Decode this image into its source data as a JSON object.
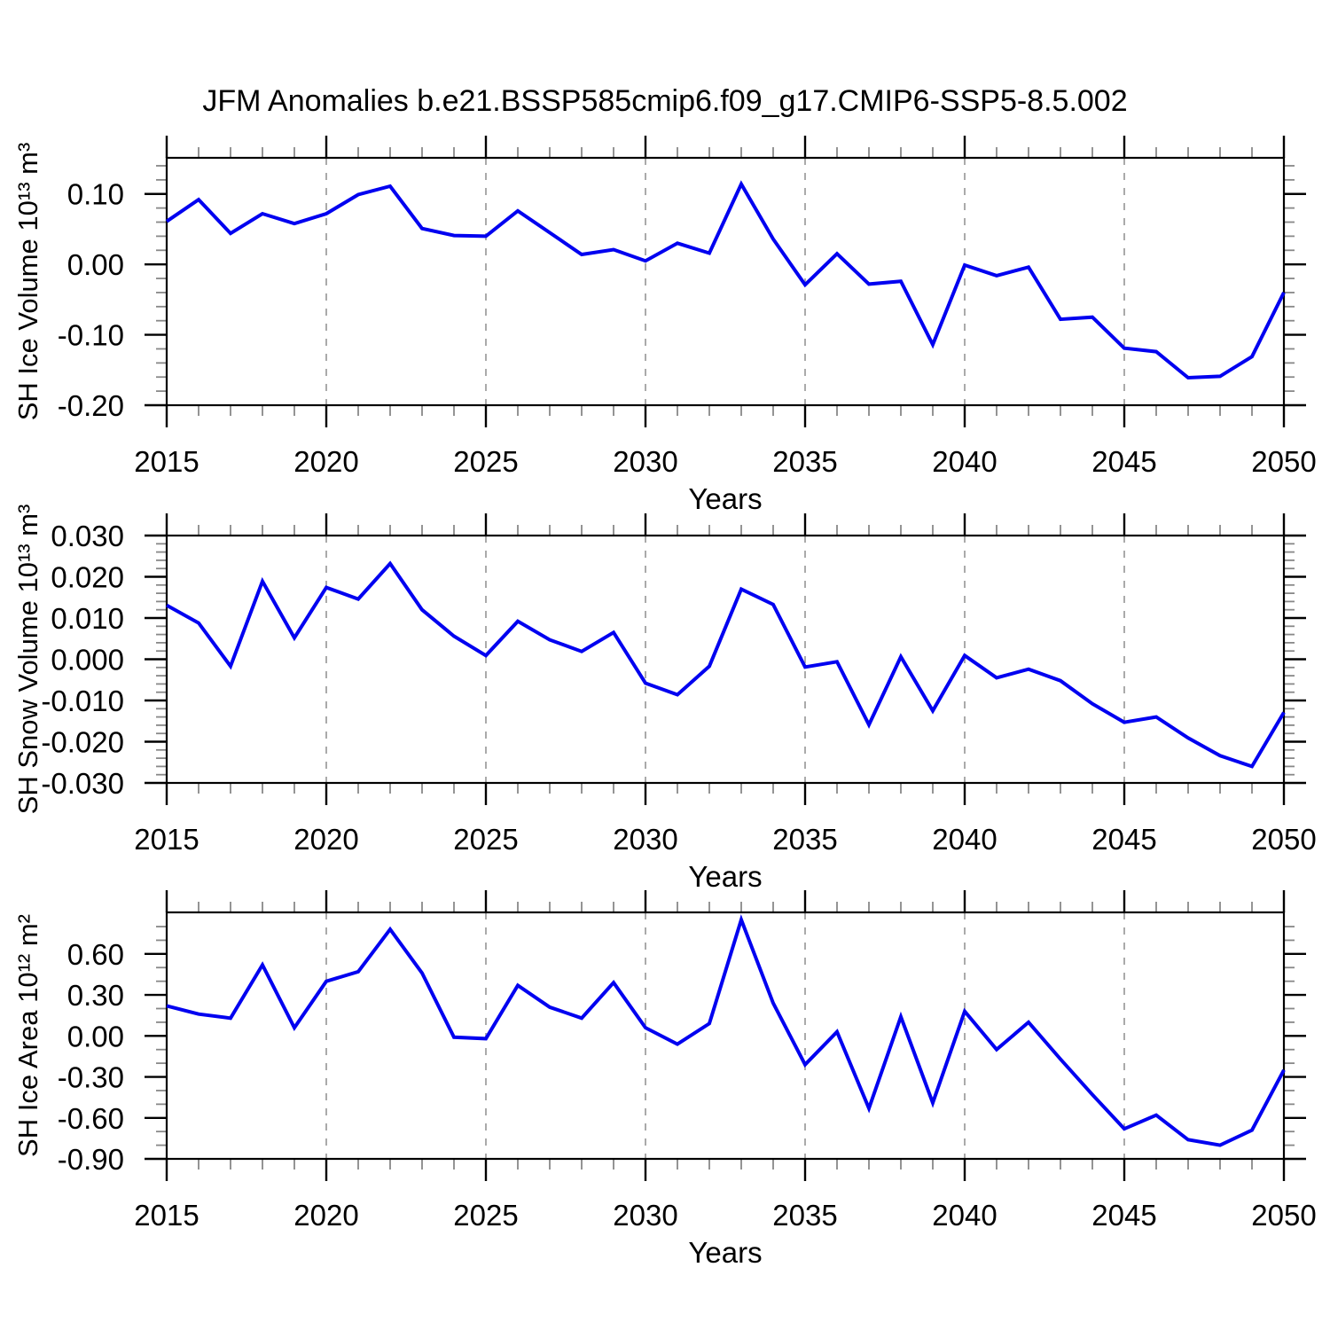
{
  "title": "JFM Anomalies b.e21.BSSP585cmip6.f09_g17.CMIP6-SSP5-8.5.002",
  "xlabel": "Years",
  "colors": {
    "line": "#0000f0",
    "grid": "#aaaaaa",
    "axis": "#000000",
    "minor_tick": "#888888"
  },
  "x_axis": {
    "years": [
      2015,
      2016,
      2017,
      2018,
      2019,
      2020,
      2021,
      2022,
      2023,
      2024,
      2025,
      2026,
      2027,
      2028,
      2029,
      2030,
      2031,
      2032,
      2033,
      2034,
      2035,
      2036,
      2037,
      2038,
      2039,
      2040,
      2041,
      2042,
      2043,
      2044,
      2045,
      2046,
      2047,
      2048,
      2049,
      2050
    ],
    "major_ticks": [
      {
        "value": 2015,
        "label": "2015"
      },
      {
        "value": 2020,
        "label": "2020"
      },
      {
        "value": 2025,
        "label": "2025"
      },
      {
        "value": 2030,
        "label": "2030"
      },
      {
        "value": 2035,
        "label": "2035"
      },
      {
        "value": 2040,
        "label": "2040"
      },
      {
        "value": 2045,
        "label": "2045"
      },
      {
        "value": 2050,
        "label": "2050"
      }
    ],
    "minor_step": 1,
    "gridline_years": [
      2020,
      2025,
      2030,
      2035,
      2040,
      2045
    ],
    "xlim": [
      2015,
      2050
    ]
  },
  "chart_data": [
    {
      "type": "line",
      "id": "ice-volume",
      "ylabel": "SH Ice Volume 10¹³ m³",
      "ylim": [
        -0.2,
        0.1513
      ],
      "y_major_ticks": [
        {
          "value": 0.1,
          "label": "0.10"
        },
        {
          "value": 0.0,
          "label": "0.00"
        },
        {
          "value": -0.1,
          "label": "-0.10"
        },
        {
          "value": -0.2,
          "label": "-0.20"
        }
      ],
      "y_minor_step": 0.02,
      "values": [
        0.061,
        0.092,
        0.044,
        0.072,
        0.058,
        0.072,
        0.099,
        0.111,
        0.051,
        0.041,
        0.04,
        0.076,
        0.045,
        0.014,
        0.021,
        0.005,
        0.03,
        0.016,
        0.114,
        0.036,
        -0.029,
        0.015,
        -0.028,
        -0.024,
        -0.114,
        -0.001,
        -0.016,
        -0.004,
        -0.078,
        -0.075,
        -0.119,
        -0.124,
        -0.161,
        -0.159,
        -0.131,
        -0.04
      ]
    },
    {
      "type": "line",
      "id": "snow-volume",
      "ylabel": "SH Snow Volume 10¹³ m³",
      "ylim": [
        -0.03,
        0.03
      ],
      "y_major_ticks": [
        {
          "value": 0.03,
          "label": "0.030"
        },
        {
          "value": 0.02,
          "label": "0.020"
        },
        {
          "value": 0.01,
          "label": "0.010"
        },
        {
          "value": 0.0,
          "label": "0.000"
        },
        {
          "value": -0.01,
          "label": "-0.010"
        },
        {
          "value": -0.02,
          "label": "-0.020"
        },
        {
          "value": -0.03,
          "label": "-0.030"
        }
      ],
      "y_minor_step": 0.002,
      "values": [
        0.0131,
        0.0088,
        -0.0017,
        0.0189,
        0.0052,
        0.0174,
        0.0146,
        0.0232,
        0.012,
        0.0056,
        0.0009,
        0.0092,
        0.0047,
        0.0019,
        0.0065,
        -0.0058,
        -0.0086,
        -0.0017,
        0.017,
        0.0133,
        -0.0019,
        -0.0006,
        -0.0159,
        0.0006,
        -0.0125,
        0.0009,
        -0.0045,
        -0.0024,
        -0.0052,
        -0.0108,
        -0.0153,
        -0.014,
        -0.0191,
        -0.0234,
        -0.026,
        -0.0129
      ]
    },
    {
      "type": "line",
      "id": "ice-area",
      "ylabel": "SH Ice Area 10¹² m²",
      "ylim": [
        -0.9,
        0.904
      ],
      "y_major_ticks": [
        {
          "value": 0.6,
          "label": "0.60"
        },
        {
          "value": 0.3,
          "label": "0.30"
        },
        {
          "value": 0.0,
          "label": "0.00"
        },
        {
          "value": -0.3,
          "label": "-0.30"
        },
        {
          "value": -0.6,
          "label": "-0.60"
        },
        {
          "value": -0.9,
          "label": "-0.90"
        }
      ],
      "y_minor_step": 0.1,
      "values": [
        0.22,
        0.16,
        0.13,
        0.52,
        0.06,
        0.4,
        0.47,
        0.78,
        0.46,
        -0.01,
        -0.02,
        0.37,
        0.21,
        0.13,
        0.39,
        0.06,
        -0.06,
        0.09,
        0.85,
        0.24,
        -0.21,
        0.03,
        -0.53,
        0.14,
        -0.49,
        0.18,
        -0.1,
        0.1,
        -0.17,
        -0.43,
        -0.68,
        -0.58,
        -0.76,
        -0.8,
        -0.69,
        -0.25
      ]
    }
  ]
}
